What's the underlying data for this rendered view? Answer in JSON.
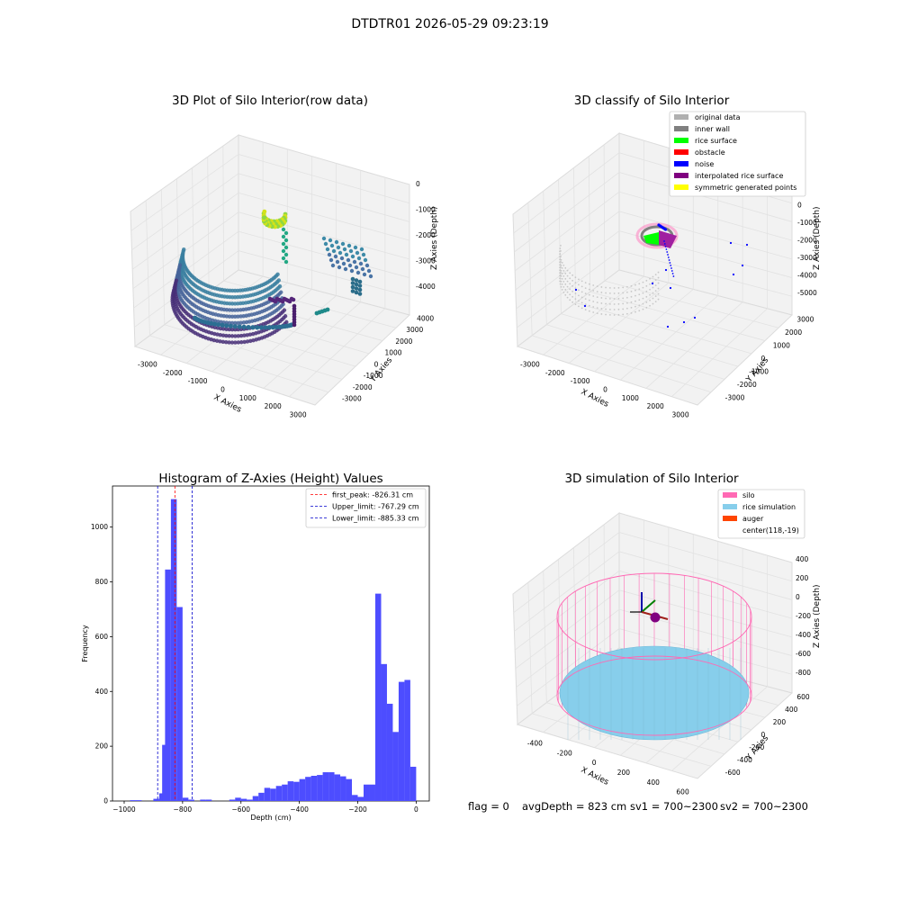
{
  "suptitle": "DTDTR01 2026-05-29 09:23:19",
  "footer": {
    "flag": "flag = 0",
    "avg_depth": "avgDepth = 823 cm",
    "sv1": "sv1 = 700~2300",
    "sv2": "sv2 = 700~2300"
  },
  "colors": {
    "hist_bar": "#4d4dff",
    "peak_line": "#ff0000",
    "limit_line": "#0000cc",
    "silo": "#ff69b4",
    "rice": "#87ceeb",
    "auger": "#ff4500",
    "center": "#800080"
  },
  "panel_raw": {
    "title": "3D Plot of Silo Interior(row data)",
    "x_label": "X Axies",
    "y_label": "Y Axies",
    "z_label": "Z Axies (Depth)",
    "x_ticks": [
      "-3000",
      "-2000",
      "-1000",
      "0",
      "1000",
      "2000",
      "3000"
    ],
    "y_ticks": [
      "-3000",
      "-2000",
      "-1000",
      "0",
      "1000",
      "2000",
      "3000",
      "4000"
    ],
    "z_ticks": [
      "-4000",
      "-3000",
      "-2000",
      "-1000",
      "0"
    ]
  },
  "panel_classify": {
    "title": "3D classify of Silo Interior",
    "x_label": "X Axies",
    "y_label": "Y Axies",
    "z_label": "Z Axies (Depth)",
    "x_ticks": [
      "-3000",
      "-2000",
      "-1000",
      "0",
      "1000",
      "2000",
      "3000"
    ],
    "y_ticks": [
      "-3000",
      "-2000",
      "-1000",
      "0",
      "1000",
      "2000",
      "3000"
    ],
    "z_ticks": [
      "-5000",
      "-4000",
      "-3000",
      "-2000",
      "-1000",
      "0"
    ],
    "legend": [
      {
        "label": "original data",
        "color": "#b0b0b0"
      },
      {
        "label": "inner wall",
        "color": "#808080"
      },
      {
        "label": "rice surface",
        "color": "#00ff00"
      },
      {
        "label": "obstacle",
        "color": "#ff0000"
      },
      {
        "label": "noise",
        "color": "#0000ff"
      },
      {
        "label": "interpolated rice surface",
        "color": "#800080"
      },
      {
        "label": "symmetric generated points",
        "color": "#ffff00"
      }
    ]
  },
  "panel_sim": {
    "title": "3D simulation of Silo Interior",
    "x_label": "X Axies",
    "y_label": "Y Axies",
    "z_label": "Z Axies (Depth)",
    "x_ticks": [
      "-400",
      "-200",
      "0",
      "200",
      "400",
      "600"
    ],
    "y_ticks": [
      "-600",
      "-400",
      "-200",
      "0",
      "200",
      "400",
      "600"
    ],
    "z_ticks": [
      "-800",
      "-600",
      "-400",
      "-200",
      "0",
      "200",
      "400"
    ],
    "legend": [
      {
        "label": "silo",
        "color": "#ff69b4"
      },
      {
        "label": "rice simulation",
        "color": "#87ceeb"
      },
      {
        "label": "auger",
        "color": "#ff4500"
      },
      {
        "label": "center(118,-19)",
        "color": ""
      }
    ]
  },
  "chart_data": [
    {
      "type": "bar",
      "title": "Histogram of Z-Axies (Height) Values",
      "xlabel": "Depth (cm)",
      "ylabel": "Frequency",
      "xlim": [
        -1040,
        45
      ],
      "ylim": [
        0,
        1150
      ],
      "x_ticks": [
        -1000,
        -800,
        -600,
        -400,
        -200,
        0
      ],
      "y_ticks": [
        0,
        200,
        400,
        600,
        800,
        1000
      ],
      "x_tick_labels": [
        "−1000",
        "−800",
        "−600",
        "−400",
        "−200",
        "0"
      ],
      "y_tick_labels": [
        "0",
        "200",
        "400",
        "600",
        "800",
        "1000"
      ],
      "bin_width": 20,
      "bins": [
        {
          "x0": -980,
          "count": 3
        },
        {
          "x0": -960,
          "count": 3
        },
        {
          "x0": -900,
          "count": 8
        },
        {
          "x0": -880,
          "count": 28
        },
        {
          "x0": -870,
          "count": 205
        },
        {
          "x0": -860,
          "count": 845
        },
        {
          "x0": -840,
          "count": 1102
        },
        {
          "x0": -820,
          "count": 708
        },
        {
          "x0": -800,
          "count": 12
        },
        {
          "x0": -780,
          "count": 5
        },
        {
          "x0": -740,
          "count": 5
        },
        {
          "x0": -720,
          "count": 5
        },
        {
          "x0": -640,
          "count": 5
        },
        {
          "x0": -620,
          "count": 12
        },
        {
          "x0": -600,
          "count": 8
        },
        {
          "x0": -580,
          "count": 5
        },
        {
          "x0": -560,
          "count": 18
        },
        {
          "x0": -540,
          "count": 30
        },
        {
          "x0": -520,
          "count": 48
        },
        {
          "x0": -500,
          "count": 45
        },
        {
          "x0": -480,
          "count": 55
        },
        {
          "x0": -460,
          "count": 60
        },
        {
          "x0": -440,
          "count": 72
        },
        {
          "x0": -420,
          "count": 70
        },
        {
          "x0": -400,
          "count": 80
        },
        {
          "x0": -380,
          "count": 88
        },
        {
          "x0": -360,
          "count": 92
        },
        {
          "x0": -340,
          "count": 95
        },
        {
          "x0": -320,
          "count": 105
        },
        {
          "x0": -300,
          "count": 105
        },
        {
          "x0": -280,
          "count": 97
        },
        {
          "x0": -260,
          "count": 90
        },
        {
          "x0": -240,
          "count": 80
        },
        {
          "x0": -220,
          "count": 22
        },
        {
          "x0": -200,
          "count": 15
        },
        {
          "x0": -180,
          "count": 60
        },
        {
          "x0": -160,
          "count": 60
        },
        {
          "x0": -140,
          "count": 757
        },
        {
          "x0": -120,
          "count": 500
        },
        {
          "x0": -100,
          "count": 355
        },
        {
          "x0": -80,
          "count": 252
        },
        {
          "x0": -60,
          "count": 435
        },
        {
          "x0": -40,
          "count": 442
        },
        {
          "x0": -20,
          "count": 125
        }
      ],
      "vlines": [
        {
          "name": "first_peak: -826.31 cm",
          "x": -826.31,
          "style": "peak"
        },
        {
          "name": "Upper_limit: -767.29 cm",
          "x": -767.29,
          "style": "limit"
        },
        {
          "name": "Lower_limit: -885.33 cm",
          "x": -885.33,
          "style": "limit"
        }
      ],
      "legend_position": "top-right"
    }
  ]
}
